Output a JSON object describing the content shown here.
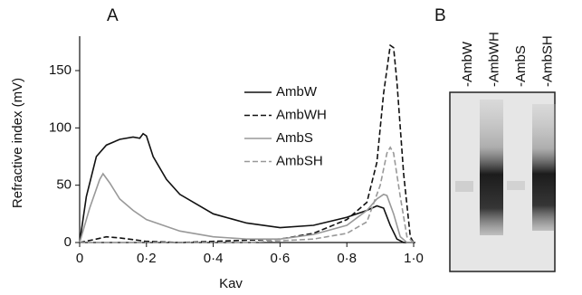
{
  "chart_data": {
    "type": "line",
    "panel_label": "A",
    "xlabel": "Kav",
    "ylabel": "Refractive index (mV)",
    "xlim": [
      0,
      1.0
    ],
    "ylim": [
      0,
      180
    ],
    "xticks": [
      0,
      {
        "value": 0.2,
        "label": "0·2"
      },
      {
        "value": 0.4,
        "label": "0·4"
      },
      {
        "value": 0.6,
        "label": "0·6"
      },
      {
        "value": 0.8,
        "label": "0·8"
      },
      {
        "value": 1.0,
        "label": "1·0"
      }
    ],
    "yticks": [
      0,
      50,
      100,
      150
    ],
    "series": [
      {
        "name": "AmbW",
        "color": "#111111",
        "style": "solid",
        "x": [
          0,
          0.02,
          0.05,
          0.08,
          0.12,
          0.16,
          0.18,
          0.19,
          0.2,
          0.22,
          0.26,
          0.3,
          0.4,
          0.5,
          0.6,
          0.7,
          0.8,
          0.86,
          0.89,
          0.91,
          0.93,
          0.95,
          0.97,
          1.0
        ],
        "values": [
          0,
          40,
          75,
          85,
          90,
          92,
          91,
          95,
          93,
          75,
          55,
          42,
          25,
          17,
          13,
          15,
          22,
          28,
          32,
          30,
          15,
          3,
          0,
          0
        ]
      },
      {
        "name": "AmbWH",
        "color": "#111111",
        "style": "dashed",
        "x": [
          0,
          0.05,
          0.08,
          0.12,
          0.2,
          0.3,
          0.6,
          0.7,
          0.8,
          0.86,
          0.89,
          0.91,
          0.93,
          0.94,
          0.95,
          0.97,
          0.99,
          1.0
        ],
        "values": [
          0,
          3,
          5,
          4,
          1,
          0,
          3,
          8,
          20,
          35,
          70,
          130,
          172,
          170,
          140,
          60,
          5,
          0
        ]
      },
      {
        "name": "AmbS",
        "color": "#999999",
        "style": "solid",
        "x": [
          0,
          0.03,
          0.06,
          0.07,
          0.09,
          0.12,
          0.16,
          0.2,
          0.3,
          0.4,
          0.5,
          0.6,
          0.7,
          0.8,
          0.86,
          0.89,
          0.91,
          0.92,
          0.94,
          0.96,
          0.98,
          1.0
        ],
        "values": [
          0,
          30,
          55,
          60,
          52,
          38,
          28,
          20,
          10,
          5,
          3,
          3,
          7,
          15,
          28,
          38,
          42,
          41,
          25,
          5,
          0,
          0
        ]
      },
      {
        "name": "AmbSH",
        "color": "#999999",
        "style": "dashed",
        "x": [
          0,
          0.1,
          0.5,
          0.7,
          0.8,
          0.86,
          0.9,
          0.92,
          0.93,
          0.94,
          0.96,
          0.98,
          1.0
        ],
        "values": [
          0,
          0,
          0,
          3,
          8,
          18,
          50,
          78,
          83,
          78,
          40,
          5,
          0
        ]
      }
    ]
  },
  "gel": {
    "panel_label": "B",
    "lanes": [
      "-AmbW",
      "-AmbWH",
      "-AmbS",
      "-AmbSH"
    ]
  }
}
